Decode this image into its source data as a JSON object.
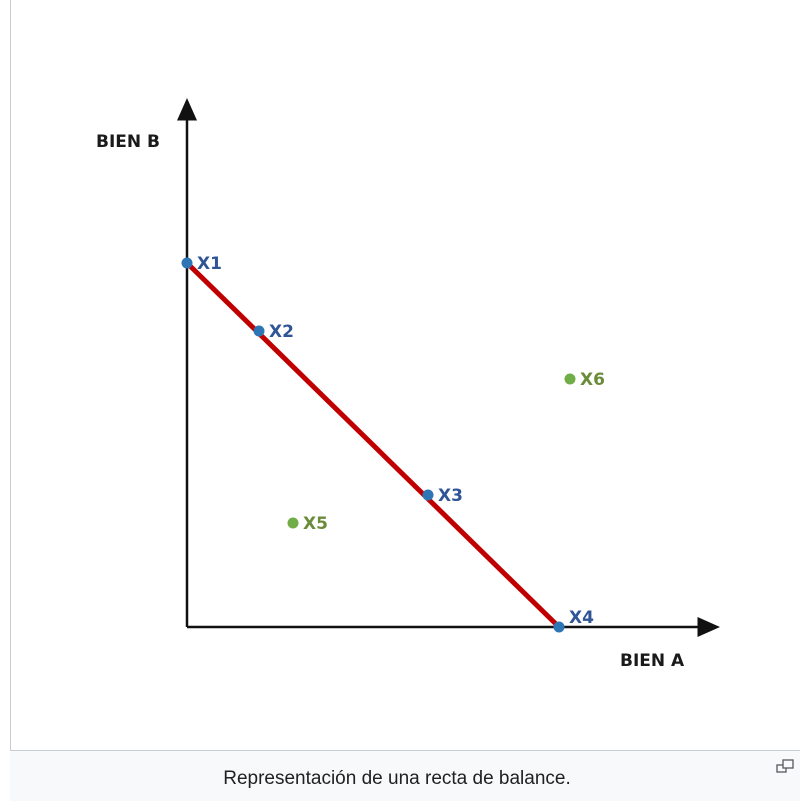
{
  "figure": {
    "y_axis_label": "BIEN B",
    "x_axis_label": "BIEN A",
    "points": [
      {
        "label": "X1"
      },
      {
        "label": "X2"
      },
      {
        "label": "X3"
      },
      {
        "label": "X4"
      },
      {
        "label": "X5"
      },
      {
        "label": "X6"
      }
    ],
    "caption": "Representación de una recta de balance."
  }
}
